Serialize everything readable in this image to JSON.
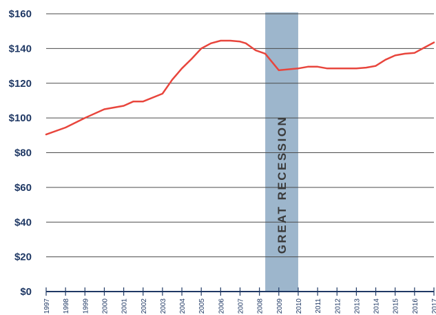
{
  "chart_data": {
    "type": "line",
    "title": "",
    "xlabel": "",
    "ylabel": "",
    "ylim": [
      0,
      160
    ],
    "xlim": [
      1997,
      2017
    ],
    "yticks": [
      {
        "value": 0,
        "label": "$0"
      },
      {
        "value": 20,
        "label": "$20"
      },
      {
        "value": 40,
        "label": "$40"
      },
      {
        "value": 60,
        "label": "$60"
      },
      {
        "value": 80,
        "label": "$80"
      },
      {
        "value": 100,
        "label": "$100"
      },
      {
        "value": 120,
        "label": "$120"
      },
      {
        "value": 140,
        "label": "$140"
      },
      {
        "value": 160,
        "label": "$160"
      }
    ],
    "xticks": [
      "1997",
      "1998",
      "1999",
      "2000",
      "2001",
      "2002",
      "2003",
      "2004",
      "2005",
      "2006",
      "2007",
      "2008",
      "2009",
      "2010",
      "2011",
      "2012",
      "2013",
      "2014",
      "2015",
      "2016",
      "2017"
    ],
    "grid": true,
    "series": [
      {
        "color": "#e8453c",
        "x": [
          1997,
          1998,
          1999,
          2000,
          2001,
          2001.5,
          2002,
          2003,
          2003.5,
          2004,
          2004.5,
          2005,
          2005.5,
          2006,
          2006.5,
          2007,
          2007.3,
          2007.8,
          2008.3,
          2009,
          2010,
          2010.5,
          2011,
          2011.5,
          2012,
          2013,
          2013.5,
          2014,
          2014.5,
          2015,
          2015.5,
          2016,
          2016.5,
          2017
        ],
        "y": [
          90.5,
          94.5,
          100,
          105,
          107,
          109.5,
          109.5,
          114,
          122,
          128.5,
          134,
          140,
          143,
          144.5,
          144.5,
          144,
          143,
          139,
          137,
          127.5,
          128.5,
          129.5,
          129.5,
          128.5,
          128.5,
          128.5,
          129,
          130,
          133.5,
          136,
          137,
          137.5,
          140.5,
          143.5
        ]
      }
    ],
    "shaded_band": {
      "x_start": 2008.3,
      "x_end": 2010,
      "color": "#9db6cc",
      "label": "GREAT RECESSION"
    }
  },
  "colors": {
    "axis": "#1f3864",
    "grid": "#4a4a4a",
    "background": "#ffffff"
  }
}
